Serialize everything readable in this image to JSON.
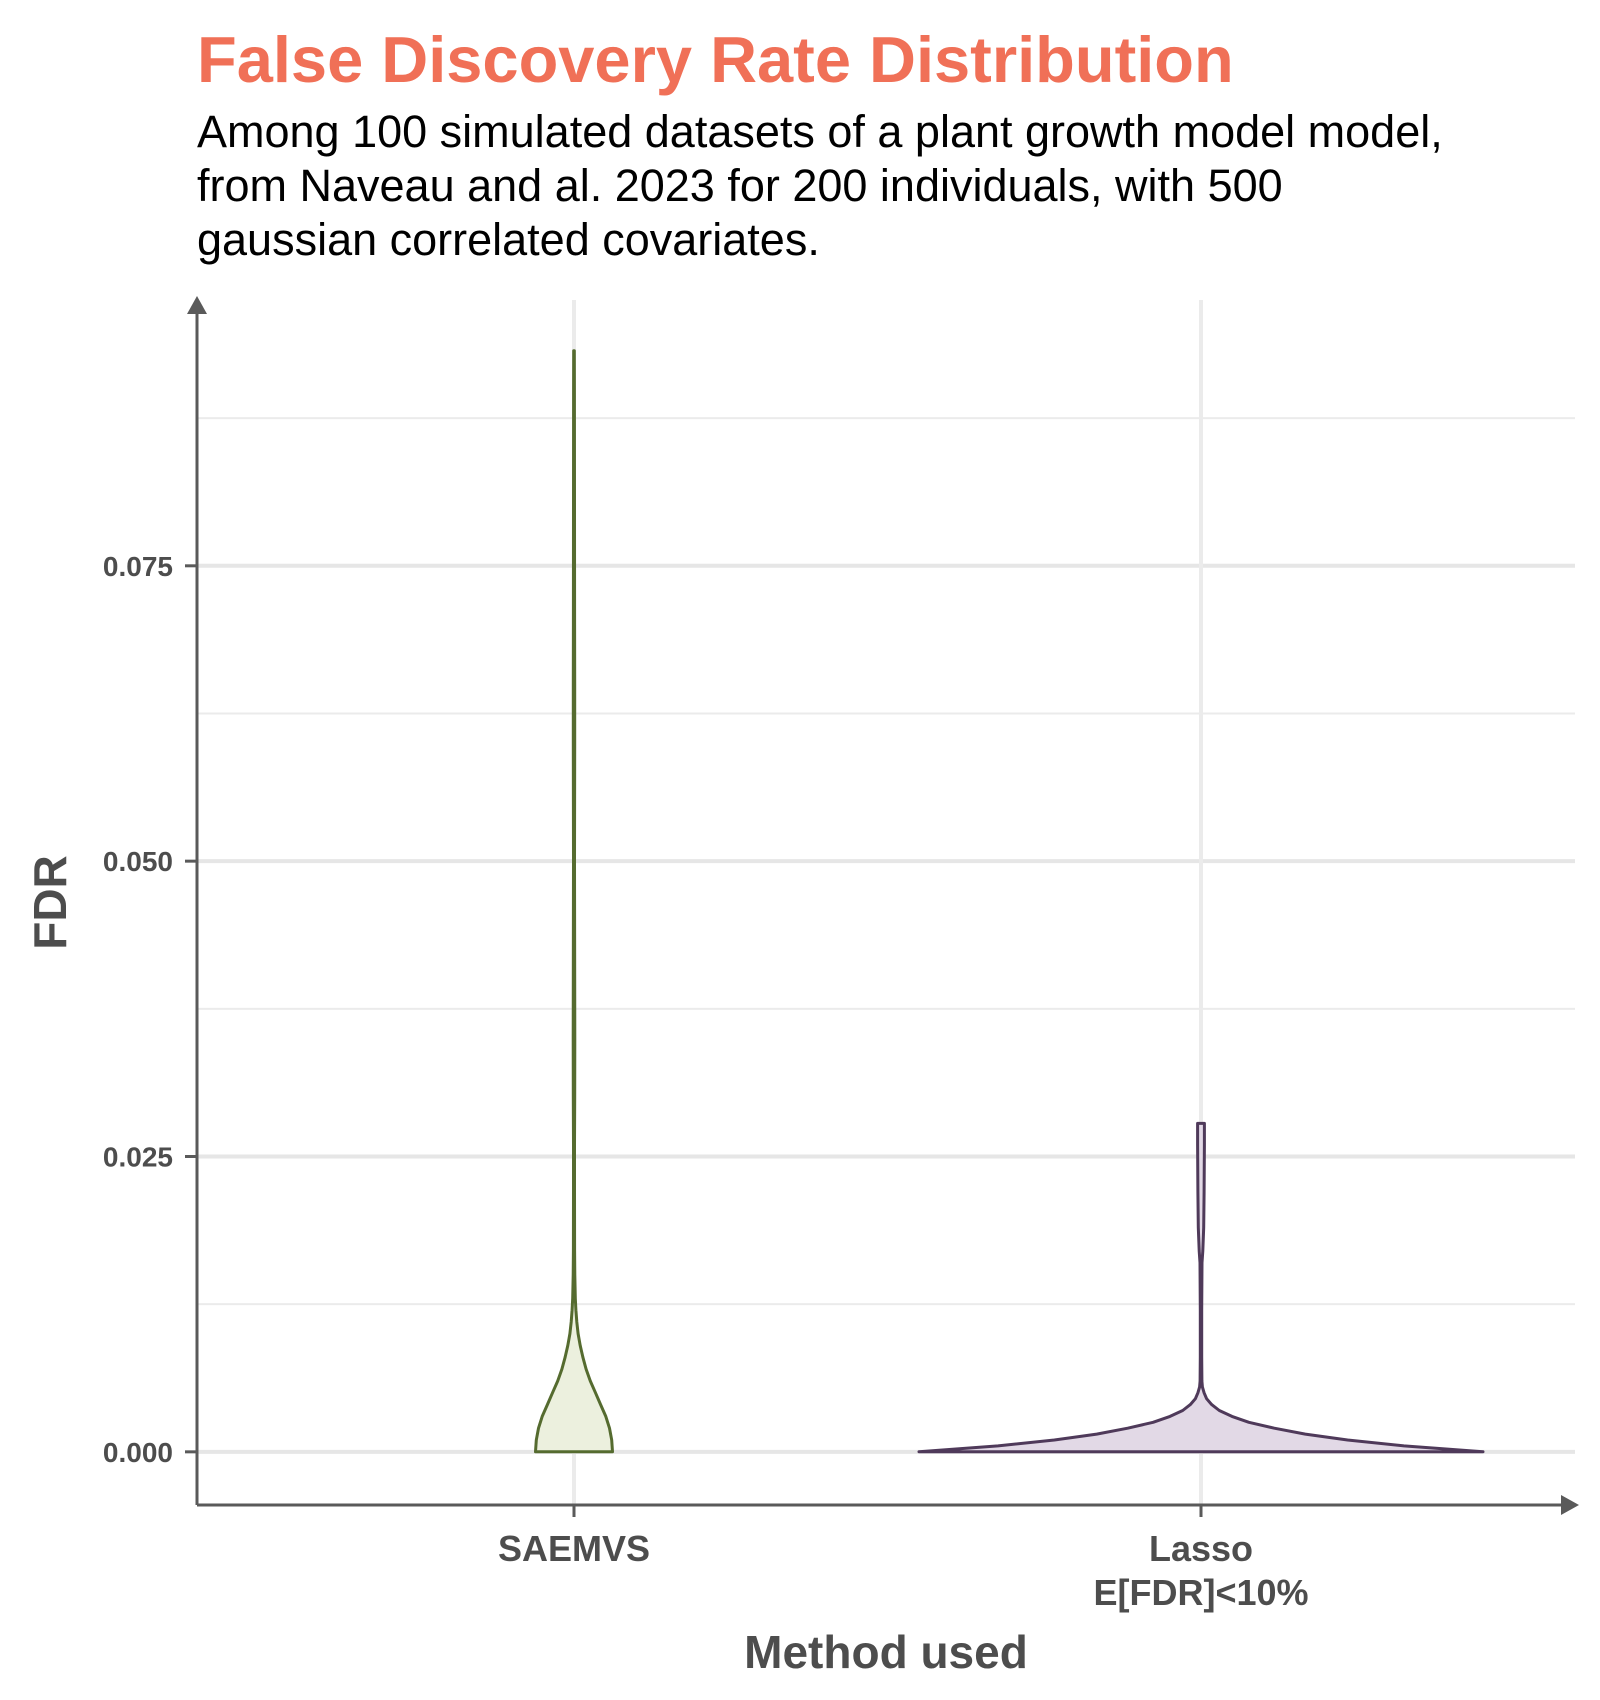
{
  "chart_data": {
    "type": "violin",
    "title": "False Discovery Rate Distribution",
    "subtitle_lines": [
      "Among 100 simulated datasets of a plant growth model model,",
      "from Naveau and al. 2023 for 200 individuals, with 500",
      "gaussian correlated covariates."
    ],
    "xlabel": "Method used",
    "ylabel": "FDR",
    "ylim": [
      -0.0045,
      0.0975
    ],
    "y_ticks": [
      0.0,
      0.025,
      0.05,
      0.075
    ],
    "y_tick_labels": [
      "0.000",
      "0.025",
      "0.050",
      "0.075"
    ],
    "y_minor_ticks": [
      0.0125,
      0.0375,
      0.0625,
      0.0875
    ],
    "grid": true,
    "legend": "none",
    "categories": [
      {
        "label_lines": [
          "SAEMVS"
        ]
      },
      {
        "label_lines": [
          "Lasso",
          "E[FDR]<10%"
        ]
      }
    ],
    "series": [
      {
        "category_index": 0,
        "fill": "#ecf0de",
        "stroke": "#556b2f",
        "min": 0.0,
        "max": 0.0932,
        "density_profile": [
          [
            0.0,
            0.26
          ],
          [
            0.001,
            0.255
          ],
          [
            0.002,
            0.24
          ],
          [
            0.003,
            0.215
          ],
          [
            0.004,
            0.18
          ],
          [
            0.005,
            0.145
          ],
          [
            0.006,
            0.11
          ],
          [
            0.007,
            0.082
          ],
          [
            0.008,
            0.06
          ],
          [
            0.009,
            0.042
          ],
          [
            0.01,
            0.028
          ],
          [
            0.011,
            0.019
          ],
          [
            0.012,
            0.013
          ],
          [
            0.013,
            0.009
          ],
          [
            0.015,
            0.0055
          ],
          [
            0.017,
            0.0042
          ],
          [
            0.022,
            0.0032
          ],
          [
            0.026,
            0.0032
          ],
          [
            0.03,
            0.0045
          ],
          [
            0.035,
            0.0055
          ],
          [
            0.04,
            0.0045
          ],
          [
            0.05,
            0.0035
          ],
          [
            0.055,
            0.004
          ],
          [
            0.06,
            0.0045
          ],
          [
            0.065,
            0.005
          ],
          [
            0.07,
            0.004
          ],
          [
            0.08,
            0.0035
          ],
          [
            0.09,
            0.003
          ],
          [
            0.0932,
            0.002
          ]
        ]
      },
      {
        "category_index": 1,
        "fill": "#e2d9e6",
        "stroke": "#4f3a5a",
        "min": 0.0,
        "max": 0.0278,
        "density_profile": [
          [
            0.0,
            1.0
          ],
          [
            0.0005,
            0.72
          ],
          [
            0.001,
            0.52
          ],
          [
            0.0015,
            0.37
          ],
          [
            0.002,
            0.26
          ],
          [
            0.0025,
            0.17
          ],
          [
            0.003,
            0.11
          ],
          [
            0.0035,
            0.065
          ],
          [
            0.004,
            0.038
          ],
          [
            0.0045,
            0.02
          ],
          [
            0.005,
            0.011
          ],
          [
            0.0055,
            0.005
          ],
          [
            0.006,
            0.0032
          ],
          [
            0.008,
            0.0025
          ],
          [
            0.012,
            0.0025
          ],
          [
            0.016,
            0.0035
          ],
          [
            0.017,
            0.0065
          ],
          [
            0.019,
            0.0095
          ],
          [
            0.022,
            0.011
          ],
          [
            0.026,
            0.012
          ],
          [
            0.0278,
            0.012
          ]
        ]
      }
    ]
  }
}
